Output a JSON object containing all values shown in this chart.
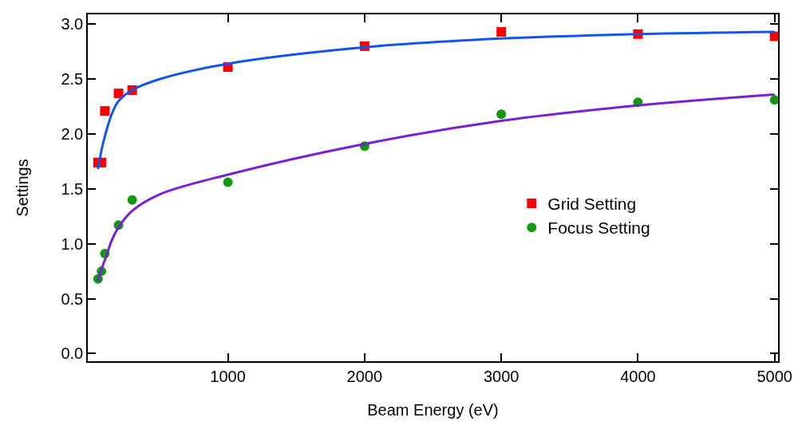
{
  "chart_data": {
    "type": "scatter",
    "xlabel": "Beam Energy (eV)",
    "ylabel": "Settings",
    "xlim": [
      -25,
      5025
    ],
    "ylim": [
      -0.07,
      3.09
    ],
    "xticks": [
      1000,
      2000,
      3000,
      4000,
      5000
    ],
    "yticks": [
      {
        "value": 0,
        "label": "0.0"
      },
      {
        "value": 0.5,
        "label": "0.5"
      },
      {
        "value": 1,
        "label": "1.0"
      },
      {
        "value": 1.5,
        "label": "1.5"
      },
      {
        "value": 2,
        "label": "2.0"
      },
      {
        "value": 2.5,
        "label": "2.5"
      },
      {
        "value": 3,
        "label": "3.0"
      }
    ],
    "legend": "right",
    "series": [
      {
        "name": "Grid Setting",
        "marker": "square",
        "color": "#ff0000",
        "x": [
          50,
          75,
          100,
          200,
          300,
          1000,
          2000,
          3000,
          4000,
          5000
        ],
        "values": [
          1.74,
          1.74,
          2.21,
          2.37,
          2.4,
          2.61,
          2.8,
          2.93,
          2.91,
          2.89
        ]
      },
      {
        "name": "Focus Setting",
        "marker": "circle",
        "color": "#119911",
        "x": [
          50,
          75,
          100,
          200,
          300,
          1000,
          2000,
          3000,
          4000,
          5000
        ],
        "values": [
          0.68,
          0.75,
          0.91,
          1.17,
          1.4,
          1.56,
          1.89,
          2.18,
          2.29,
          2.31
        ]
      },
      {
        "type": "line",
        "color": "#1155ee",
        "x": [
          50,
          75,
          100,
          150,
          200,
          300,
          500,
          1000,
          2000,
          3000,
          4000,
          5000
        ],
        "values": [
          1.68,
          1.85,
          1.98,
          2.18,
          2.3,
          2.4,
          2.5,
          2.64,
          2.79,
          2.87,
          2.91,
          2.93
        ]
      },
      {
        "type": "line",
        "color": "#7a1fd6",
        "x": [
          50,
          75,
          100,
          150,
          200,
          300,
          500,
          1000,
          2000,
          3000,
          4000,
          5000
        ],
        "values": [
          0.66,
          0.77,
          0.85,
          1.03,
          1.15,
          1.3,
          1.45,
          1.63,
          1.91,
          2.12,
          2.26,
          2.36
        ]
      }
    ]
  }
}
